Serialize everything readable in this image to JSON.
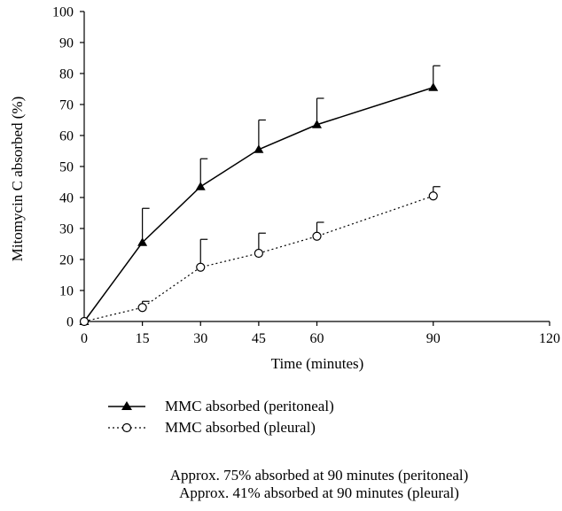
{
  "chart_data": {
    "type": "line",
    "xlabel": "Time (minutes)",
    "ylabel": "Mitomycin C absorbed (%)",
    "xlim": [
      0,
      120
    ],
    "ylim": [
      0,
      100
    ],
    "x_ticks": [
      0,
      15,
      30,
      45,
      60,
      90,
      120
    ],
    "y_ticks": [
      0,
      10,
      20,
      30,
      40,
      50,
      60,
      70,
      80,
      90,
      100
    ],
    "grid": false,
    "legend_position": "bottom",
    "series": [
      {
        "name": "MMC absorbed (peritoneal)",
        "marker": "filled-triangle",
        "line_style": "solid",
        "color": "#000000",
        "x": [
          0,
          15,
          30,
          45,
          60,
          90
        ],
        "y": [
          0,
          25.5,
          43.5,
          55.5,
          63.5,
          75.5
        ],
        "error_upper": [
          0,
          11,
          9,
          9.5,
          8.5,
          7
        ]
      },
      {
        "name": "MMC absorbed (pleural)",
        "marker": "open-circle",
        "line_style": "dotted",
        "color": "#000000",
        "x": [
          0,
          15,
          30,
          45,
          60,
          90
        ],
        "y": [
          0,
          4.5,
          17.5,
          22,
          27.5,
          40.5
        ],
        "error_upper": [
          0,
          2,
          9,
          6.5,
          4.5,
          3
        ]
      }
    ]
  },
  "legend": [
    {
      "label": "MMC absorbed (peritoneal)"
    },
    {
      "label": "MMC absorbed (pleural)"
    }
  ],
  "notes": [
    "Approx. 75% absorbed at 90 minutes (peritoneal)",
    "Approx. 41% absorbed at 90 minutes (pleural)"
  ]
}
